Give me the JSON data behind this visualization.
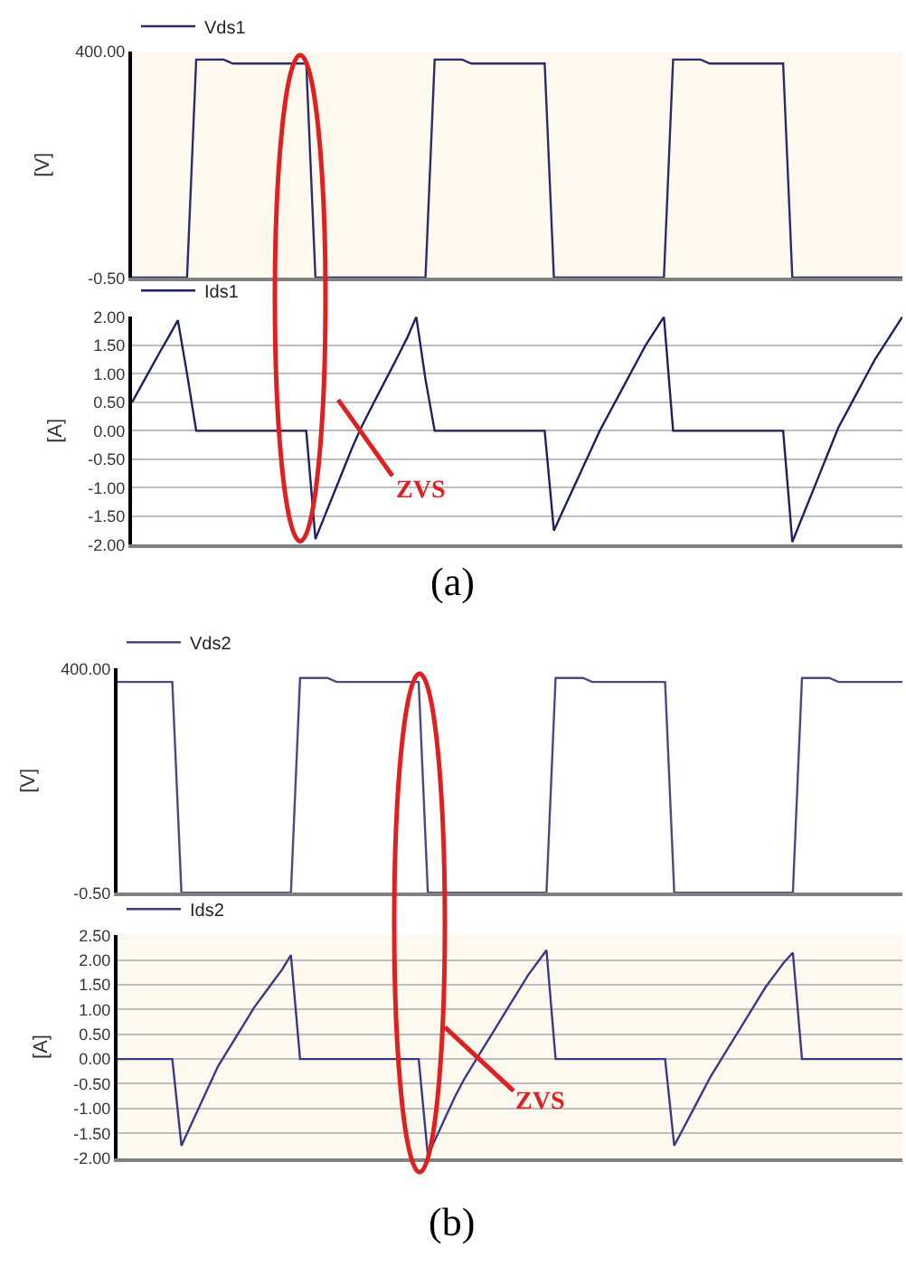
{
  "chart_data": [
    {
      "type": "line",
      "categories": [
        null,
        null,
        null,
        null,
        null,
        null,
        null,
        null,
        null,
        null,
        null,
        null,
        null,
        null,
        null,
        null,
        null,
        null,
        null,
        null,
        null,
        null,
        null,
        null,
        null,
        null,
        null,
        null,
        null,
        null,
        null,
        null,
        null,
        null,
        null,
        null,
        null,
        null,
        null,
        null,
        null,
        null,
        null,
        null,
        null,
        null,
        null,
        null,
        null,
        null,
        null,
        null,
        null,
        null,
        null,
        null,
        null,
        null,
        null,
        null,
        null,
        null,
        null,
        null,
        null,
        null,
        null,
        null,
        null,
        null,
        null,
        null,
        null,
        null,
        null,
        null,
        null,
        null,
        null,
        null,
        null,
        null,
        null,
        null,
        null
      ],
      "series": [
        {
          "name": "Vds1",
          "color": "#2b2b6e",
          "values": [
            0,
            0,
            0,
            0,
            0,
            0,
            0,
            386,
            386,
            386,
            386,
            379,
            379,
            379,
            379,
            379,
            379,
            379,
            379,
            379,
            0,
            0,
            0,
            0,
            0,
            0,
            0,
            0,
            0,
            0,
            0,
            0,
            0,
            386,
            386,
            386,
            386,
            379,
            379,
            379,
            379,
            379,
            379,
            379,
            379,
            379,
            0,
            0,
            0,
            0,
            0,
            0,
            0,
            0,
            0,
            0,
            0,
            0,
            0,
            386,
            386,
            386,
            386,
            379,
            379,
            379,
            379,
            379,
            379,
            379,
            379,
            379,
            0,
            0,
            0,
            0,
            0,
            0,
            0,
            0,
            0,
            0,
            0,
            0,
            0
          ]
        }
      ],
      "ylabel": "[V]",
      "ylim": [
        -0.5,
        400
      ],
      "yticks": [
        {
          "value": 400,
          "label": "400.00"
        },
        {
          "value": -0.5,
          "label": "-0.50"
        }
      ],
      "grid": false,
      "legend": "top left",
      "tick_labels": "y"
    },
    {
      "type": "line",
      "categories": [
        null,
        null,
        null,
        null,
        null,
        null,
        null,
        null,
        null,
        null,
        null,
        null,
        null,
        null,
        null,
        null,
        null,
        null,
        null,
        null,
        null,
        null,
        null,
        null,
        null,
        null,
        null,
        null,
        null,
        null,
        null,
        null,
        null,
        null,
        null,
        null,
        null,
        null,
        null,
        null,
        null,
        null,
        null,
        null,
        null,
        null,
        null,
        null,
        null,
        null,
        null,
        null,
        null,
        null,
        null,
        null,
        null,
        null,
        null,
        null,
        null,
        null,
        null,
        null,
        null,
        null,
        null,
        null,
        null,
        null,
        null,
        null,
        null,
        null,
        null,
        null,
        null,
        null,
        null,
        null,
        null,
        null,
        null,
        null,
        null
      ],
      "series": [
        {
          "name": "Ids1",
          "color": "#1f1f66",
          "values": [
            0.5,
            0.79,
            1.08,
            1.37,
            1.65,
            1.94,
            1.0,
            0,
            0,
            0,
            0,
            0,
            0,
            0,
            0,
            0,
            0,
            0,
            0,
            0,
            -1.9,
            -1.5,
            -1.1,
            -0.7,
            -0.3,
            0.06,
            0.38,
            0.69,
            1.0,
            1.31,
            1.63,
            2.0,
            0.9,
            0,
            0,
            0,
            0,
            0,
            0,
            0,
            0,
            0,
            0,
            0,
            0,
            0,
            -1.75,
            -1.4,
            -1.05,
            -0.7,
            -0.35,
            0.0,
            0.3,
            0.6,
            0.9,
            1.2,
            1.5,
            1.75,
            2.0,
            0,
            0,
            0,
            0,
            0,
            0,
            0,
            0,
            0,
            0,
            0,
            0,
            0,
            -1.95,
            -1.55,
            -1.15,
            -0.75,
            -0.35,
            0.05,
            0.35,
            0.65,
            0.95,
            1.25,
            1.5,
            1.75,
            2.0
          ]
        }
      ],
      "ylabel": "[A]",
      "ylim": [
        -2,
        2
      ],
      "yticks": [
        {
          "value": 2,
          "label": "2.00"
        },
        {
          "value": 1.5,
          "label": "1.50"
        },
        {
          "value": 1,
          "label": "1.00"
        },
        {
          "value": 0.5,
          "label": "0.50"
        },
        {
          "value": 0,
          "label": "0.00"
        },
        {
          "value": -0.5,
          "label": "-0.50"
        },
        {
          "value": -1,
          "label": "-1.00"
        },
        {
          "value": -1.5,
          "label": "-1.50"
        },
        {
          "value": -2,
          "label": "-2.00"
        }
      ],
      "grid": "y",
      "legend": "top left",
      "tick_labels": "y",
      "annotations": [
        "ZVS",
        "(a)"
      ]
    },
    {
      "type": "line",
      "categories": [
        null,
        null,
        null,
        null,
        null,
        null,
        null,
        null,
        null,
        null,
        null,
        null,
        null,
        null,
        null,
        null,
        null,
        null,
        null,
        null,
        null,
        null,
        null,
        null,
        null,
        null,
        null,
        null,
        null,
        null,
        null,
        null,
        null,
        null,
        null,
        null,
        null,
        null,
        null,
        null,
        null,
        null,
        null,
        null,
        null,
        null,
        null,
        null,
        null,
        null,
        null,
        null,
        null,
        null,
        null,
        null,
        null,
        null,
        null,
        null,
        null,
        null,
        null,
        null,
        null,
        null,
        null,
        null,
        null,
        null,
        null,
        null,
        null,
        null,
        null,
        null,
        null,
        null,
        null,
        null,
        null,
        null,
        null,
        null,
        null,
        null,
        null
      ],
      "series": [
        {
          "name": "Vds2",
          "color": "#4a4a80",
          "values": [
            376,
            376,
            376,
            376,
            376,
            376,
            376,
            0,
            0,
            0,
            0,
            0,
            0,
            0,
            0,
            0,
            0,
            0,
            0,
            0,
            383,
            383,
            383,
            383,
            376,
            376,
            376,
            376,
            376,
            376,
            376,
            376,
            376,
            376,
            0,
            0,
            0,
            0,
            0,
            0,
            0,
            0,
            0,
            0,
            0,
            0,
            0,
            0,
            383,
            383,
            383,
            383,
            376,
            376,
            376,
            376,
            376,
            376,
            376,
            376,
            376,
            0,
            0,
            0,
            0,
            0,
            0,
            0,
            0,
            0,
            0,
            0,
            0,
            0,
            0,
            383,
            383,
            383,
            383,
            376,
            376,
            376,
            376,
            376,
            376,
            376,
            376
          ]
        }
      ],
      "ylabel": "[V]",
      "ylim": [
        -0.5,
        400
      ],
      "yticks": [
        {
          "value": 400,
          "label": "400.00"
        },
        {
          "value": -0.5,
          "label": "-0.50"
        }
      ],
      "grid": false,
      "legend": "top left",
      "tick_labels": "y"
    },
    {
      "type": "line",
      "categories": [
        null,
        null,
        null,
        null,
        null,
        null,
        null,
        null,
        null,
        null,
        null,
        null,
        null,
        null,
        null,
        null,
        null,
        null,
        null,
        null,
        null,
        null,
        null,
        null,
        null,
        null,
        null,
        null,
        null,
        null,
        null,
        null,
        null,
        null,
        null,
        null,
        null,
        null,
        null,
        null,
        null,
        null,
        null,
        null,
        null,
        null,
        null,
        null,
        null,
        null,
        null,
        null,
        null,
        null,
        null,
        null,
        null,
        null,
        null,
        null,
        null,
        null,
        null,
        null,
        null,
        null,
        null,
        null,
        null,
        null,
        null,
        null,
        null,
        null,
        null,
        null,
        null,
        null,
        null,
        null,
        null,
        null,
        null,
        null,
        null,
        null,
        null
      ],
      "series": [
        {
          "name": "Ids2",
          "color": "#3a3a88",
          "values": [
            0,
            0,
            0,
            0,
            0,
            0,
            0,
            -1.75,
            -1.35,
            -0.95,
            -0.55,
            -0.15,
            0.15,
            0.45,
            0.75,
            1.05,
            1.3,
            1.55,
            1.8,
            2.1,
            0,
            0,
            0,
            0,
            0,
            0,
            0,
            0,
            0,
            0,
            0,
            0,
            0,
            0,
            -1.95,
            -1.55,
            -1.15,
            -0.75,
            -0.4,
            -0.1,
            0.2,
            0.5,
            0.8,
            1.1,
            1.4,
            1.7,
            1.95,
            2.2,
            0,
            0,
            0,
            0,
            0,
            0,
            0,
            0,
            0,
            0,
            0,
            0,
            0,
            -1.75,
            -1.4,
            -1.05,
            -0.7,
            -0.35,
            -0.05,
            0.25,
            0.55,
            0.85,
            1.15,
            1.45,
            1.7,
            1.95,
            2.15,
            0,
            0,
            0,
            0,
            0,
            0,
            0,
            0,
            0,
            0,
            0,
            0
          ]
        }
      ],
      "ylabel": "[A]",
      "ylim": [
        -2,
        2.5
      ],
      "yticks": [
        {
          "value": 2.5,
          "label": "2.50"
        },
        {
          "value": 2,
          "label": "2.00"
        },
        {
          "value": 1.5,
          "label": "1.50"
        },
        {
          "value": 1,
          "label": "1.00"
        },
        {
          "value": 0.5,
          "label": "0.50"
        },
        {
          "value": 0,
          "label": "0.00"
        },
        {
          "value": -0.5,
          "label": "-0.50"
        },
        {
          "value": -1,
          "label": "-1.00"
        },
        {
          "value": -1.5,
          "label": "-1.50"
        },
        {
          "value": -2,
          "label": "-2.00"
        }
      ],
      "grid": "y",
      "legend": "top left",
      "tick_labels": "y",
      "annotations": [
        "ZVS",
        "(b)"
      ]
    }
  ]
}
